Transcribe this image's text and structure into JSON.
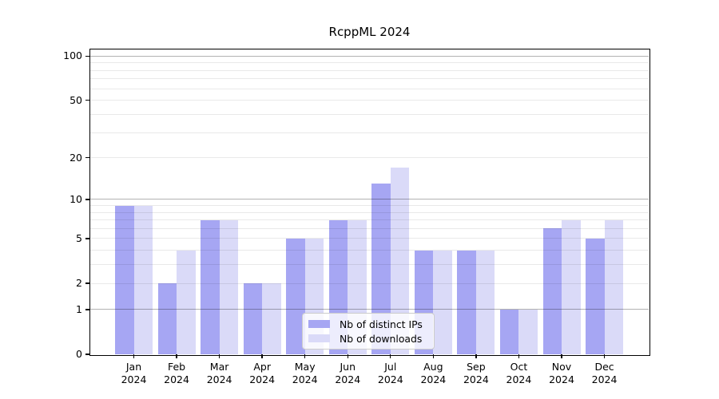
{
  "title": "RcppML 2024",
  "chart_data": {
    "type": "bar",
    "title": "RcppML 2024",
    "categories": [
      "Jan 2024",
      "Feb 2024",
      "Mar 2024",
      "Apr 2024",
      "May 2024",
      "Jun 2024",
      "Jul 2024",
      "Aug 2024",
      "Sep 2024",
      "Oct 2024",
      "Nov 2024",
      "Dec 2024"
    ],
    "series": [
      {
        "name": "Nb of distinct IPs",
        "color": "#a6a6f3",
        "values": [
          9,
          2,
          7,
          2,
          5,
          7,
          13,
          4,
          4,
          1,
          6,
          5
        ]
      },
      {
        "name": "Nb of downloads",
        "color": "#dadaf8",
        "values": [
          9,
          4,
          7,
          2,
          5,
          7,
          17,
          4,
          4,
          1,
          7,
          7
        ]
      }
    ],
    "yscale": "log10(1+x)",
    "ylim": [
      0,
      111
    ],
    "yticks": [
      0,
      1,
      2,
      5,
      10,
      20,
      50,
      100
    ],
    "grid": {
      "major_values": [
        1,
        10,
        100
      ],
      "minor_values": [
        2,
        3,
        4,
        5,
        6,
        7,
        8,
        9,
        20,
        30,
        40,
        50,
        60,
        70,
        80,
        90
      ],
      "major_color": "#b2b2b2",
      "minor_color": "#ebebeb"
    },
    "legend_position": "lower center",
    "axis_color": "#000000",
    "background_color": "#ffffff"
  }
}
